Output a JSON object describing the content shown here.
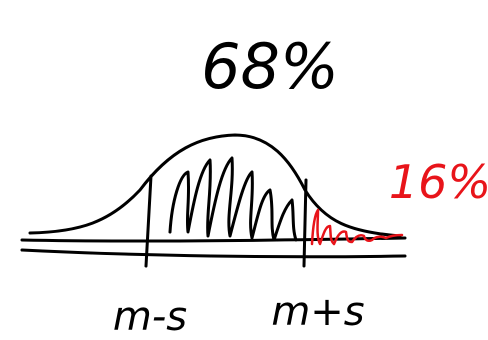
{
  "labels": {
    "center_area": "68%",
    "tail_area": "16%",
    "left_bound": "m-s",
    "right_bound": "m+s"
  }
}
